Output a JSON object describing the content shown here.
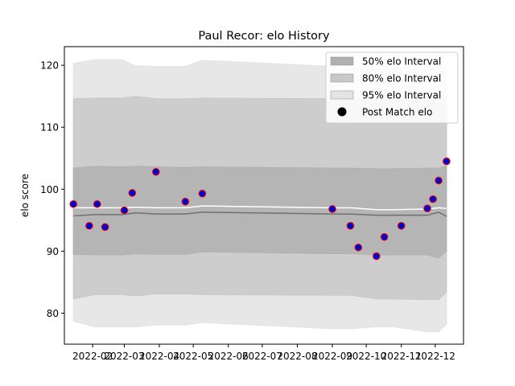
{
  "chart_data": {
    "type": "line",
    "title": "Paul Recor: elo History",
    "xlabel": "",
    "ylabel": "elo score",
    "ylim": [
      75,
      123
    ],
    "xlim": [
      "2022-01-07",
      "2022-12-26"
    ],
    "grid": false,
    "legend_position": "top-right",
    "x_ticks": [
      "2022-02",
      "2022-03",
      "2022-04",
      "2022-05",
      "2022-06",
      "2022-07",
      "2022-08",
      "2022-09",
      "2022-10",
      "2022-11",
      "2022-12"
    ],
    "x_tick_dates": [
      "2022-02-01",
      "2022-03-01",
      "2022-04-01",
      "2022-05-01",
      "2022-06-01",
      "2022-07-01",
      "2022-08-01",
      "2022-09-01",
      "2022-10-01",
      "2022-11-01",
      "2022-12-01"
    ],
    "y_ticks": [
      80,
      90,
      100,
      110,
      120
    ],
    "band_x": [
      "2022-01-15",
      "2022-02-03",
      "2022-02-27",
      "2022-03-11",
      "2022-03-29",
      "2022-04-24",
      "2022-05-09",
      "2022-09-01",
      "2022-09-17",
      "2022-10-10",
      "2022-10-25",
      "2022-11-24",
      "2022-12-04",
      "2022-12-11"
    ],
    "median": [
      95.7,
      95.9,
      95.9,
      96.2,
      96.0,
      96.0,
      96.3,
      96.0,
      96.0,
      95.8,
      95.8,
      95.8,
      96.3,
      95.6
    ],
    "mean": [
      97.0,
      97.0,
      97.0,
      97.1,
      97.0,
      97.0,
      97.3,
      97.0,
      97.0,
      96.7,
      96.7,
      96.8,
      97.0,
      96.9
    ],
    "intervals": [
      {
        "name": "50% elo Interval",
        "color": "#b0b0b0",
        "upper": [
          103.4,
          103.7,
          103.6,
          103.7,
          103.6,
          103.5,
          103.6,
          103.4,
          103.4,
          103.3,
          103.3,
          103.4,
          103.4,
          103.7
        ],
        "lower": [
          89.5,
          89.4,
          89.4,
          89.6,
          89.5,
          89.5,
          89.9,
          89.6,
          89.6,
          89.4,
          89.4,
          89.4,
          88.9,
          90.0
        ]
      },
      {
        "name": "80% elo Interval",
        "color": "#c8c8c8",
        "upper": [
          114.6,
          114.7,
          114.7,
          115.0,
          114.6,
          114.6,
          114.7,
          114.6,
          114.6,
          114.4,
          114.4,
          114.5,
          114.5,
          114.9
        ],
        "lower": [
          82.3,
          83.0,
          83.0,
          82.8,
          83.1,
          83.1,
          83.0,
          82.9,
          82.9,
          82.3,
          82.3,
          82.2,
          82.2,
          83.4
        ]
      },
      {
        "name": "95% elo Interval",
        "color": "#e3e3e3",
        "upper": [
          120.3,
          120.9,
          120.9,
          119.9,
          119.8,
          119.8,
          120.8,
          119.8,
          119.8,
          119.6,
          119.6,
          119.6,
          119.6,
          120.0
        ],
        "lower": [
          78.7,
          77.8,
          77.8,
          77.8,
          78.1,
          78.1,
          78.5,
          77.5,
          77.5,
          77.8,
          77.8,
          77.0,
          77.0,
          78.2
        ]
      }
    ],
    "post_match": {
      "name": "Post Match elo",
      "dates": [
        "2022-01-15",
        "2022-01-29",
        "2022-02-05",
        "2022-02-12",
        "2022-03-01",
        "2022-03-08",
        "2022-03-29",
        "2022-04-24",
        "2022-05-09",
        "2022-09-01",
        "2022-09-17",
        "2022-09-24",
        "2022-10-10",
        "2022-10-17",
        "2022-11-01",
        "2022-11-24",
        "2022-11-29",
        "2022-12-04",
        "2022-12-11"
      ],
      "values": [
        97.6,
        94.1,
        97.6,
        93.9,
        96.6,
        99.4,
        102.8,
        98.0,
        99.3,
        96.8,
        94.1,
        90.6,
        89.2,
        92.3,
        94.1,
        96.9,
        98.4,
        101.4,
        104.5
      ],
      "face_color": "#0000cc",
      "edge_color": "#ff0000"
    },
    "median_color": "#707070",
    "mean_color": "#ffffff"
  }
}
